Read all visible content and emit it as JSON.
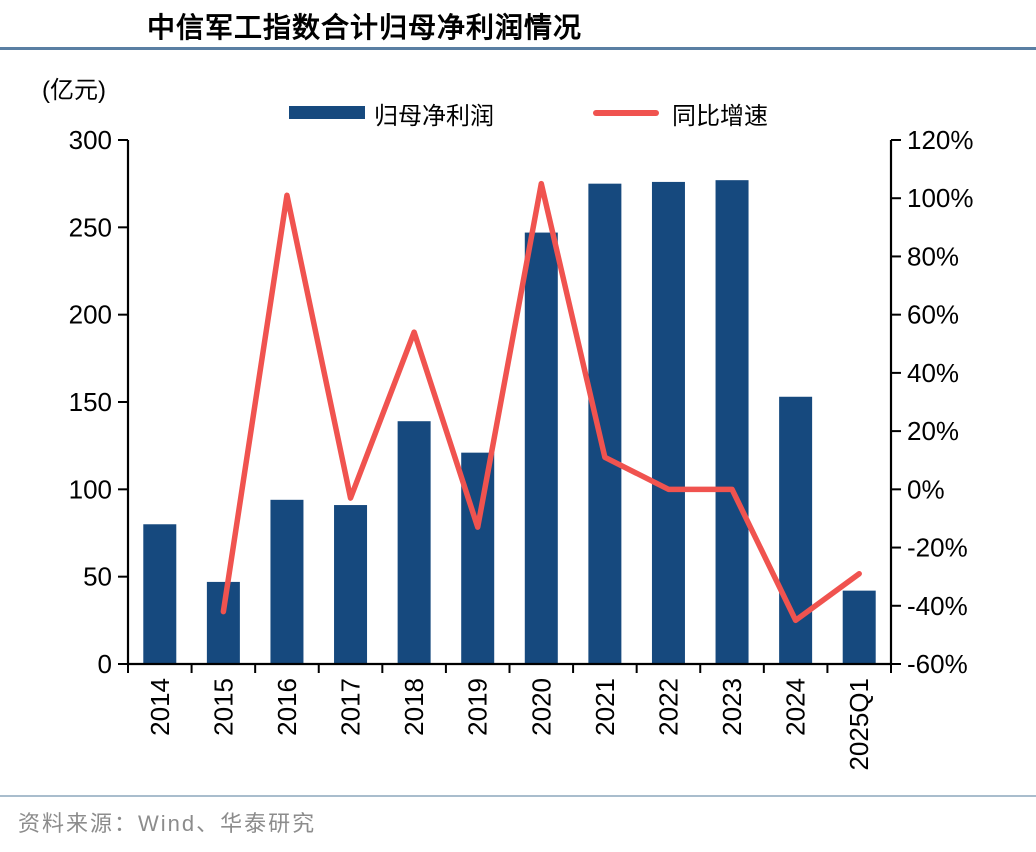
{
  "header": {
    "title": "中信军工指数合计归母净利润情况"
  },
  "unit_label": "(亿元)",
  "legend": {
    "bar_label": "归母净利润",
    "line_label": "同比增速"
  },
  "colors": {
    "bar": "#16497E",
    "line": "#F0534F",
    "axis": "#000000",
    "title_rule": "#5A7FA3",
    "footer_rule": "#A9BDCD",
    "footer_text": "#8C8C8C"
  },
  "chart_data": {
    "type": "bar",
    "title": "中信军工指数合计归母净利润情况",
    "categories": [
      "2014",
      "2015",
      "2016",
      "2017",
      "2018",
      "2019",
      "2020",
      "2021",
      "2022",
      "2023",
      "2024",
      "2025Q1"
    ],
    "series": [
      {
        "name": "归母净利润",
        "type": "bar",
        "axis": "left",
        "color": "#16497E",
        "values": [
          80,
          47,
          94,
          91,
          139,
          121,
          247,
          275,
          276,
          277,
          153,
          42
        ]
      },
      {
        "name": "同比增速",
        "type": "line",
        "axis": "right",
        "color": "#F0534F",
        "values": [
          null,
          -42,
          101,
          -3,
          54,
          -13,
          105,
          11,
          0,
          0,
          -45,
          -29
        ]
      }
    ],
    "left_axis": {
      "label": "(亿元)",
      "min": 0,
      "max": 300,
      "step": 50,
      "tick_labels": [
        "0",
        "50",
        "100",
        "150",
        "200",
        "250",
        "300"
      ]
    },
    "right_axis": {
      "min": -60,
      "max": 120,
      "step": 20,
      "suffix": "%",
      "tick_labels": [
        "-60%",
        "-40%",
        "-20%",
        "0%",
        "20%",
        "40%",
        "60%",
        "80%",
        "100%",
        "120%"
      ]
    },
    "grid": false,
    "legend_position": "top"
  },
  "footer": {
    "source": "资料来源：Wind、华泰研究"
  }
}
